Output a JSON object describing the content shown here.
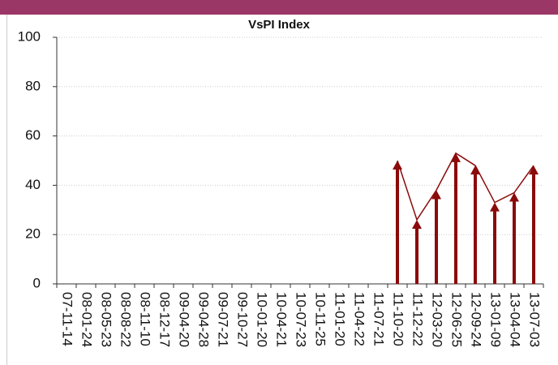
{
  "chart_data": {
    "type": "arrow-line",
    "title": "VsPI Index",
    "categories": [
      "07-11-14",
      "08-01-24",
      "08-05-23",
      "08-08-22",
      "08-11-10",
      "08-12-17",
      "09-04-20",
      "09-04-28",
      "09-07-21",
      "09-10-27",
      "10-01-20",
      "10-04-21",
      "10-07-23",
      "10-11-25",
      "11-01-20",
      "11-04-22",
      "11-07-21",
      "11-10-20",
      "11-12-22",
      "12-03-20",
      "12-06-25",
      "12-09-24",
      "13-01-09",
      "13-04-04",
      "13-07-03"
    ],
    "values": [
      null,
      null,
      null,
      null,
      null,
      null,
      null,
      null,
      null,
      null,
      null,
      null,
      null,
      null,
      null,
      null,
      null,
      50,
      26,
      38,
      53,
      48,
      33,
      37,
      48
    ],
    "color": "#8b0a0a",
    "ylim": [
      0,
      100
    ],
    "yticks": [
      0,
      20,
      40,
      60,
      80,
      100
    ],
    "grid": true
  }
}
